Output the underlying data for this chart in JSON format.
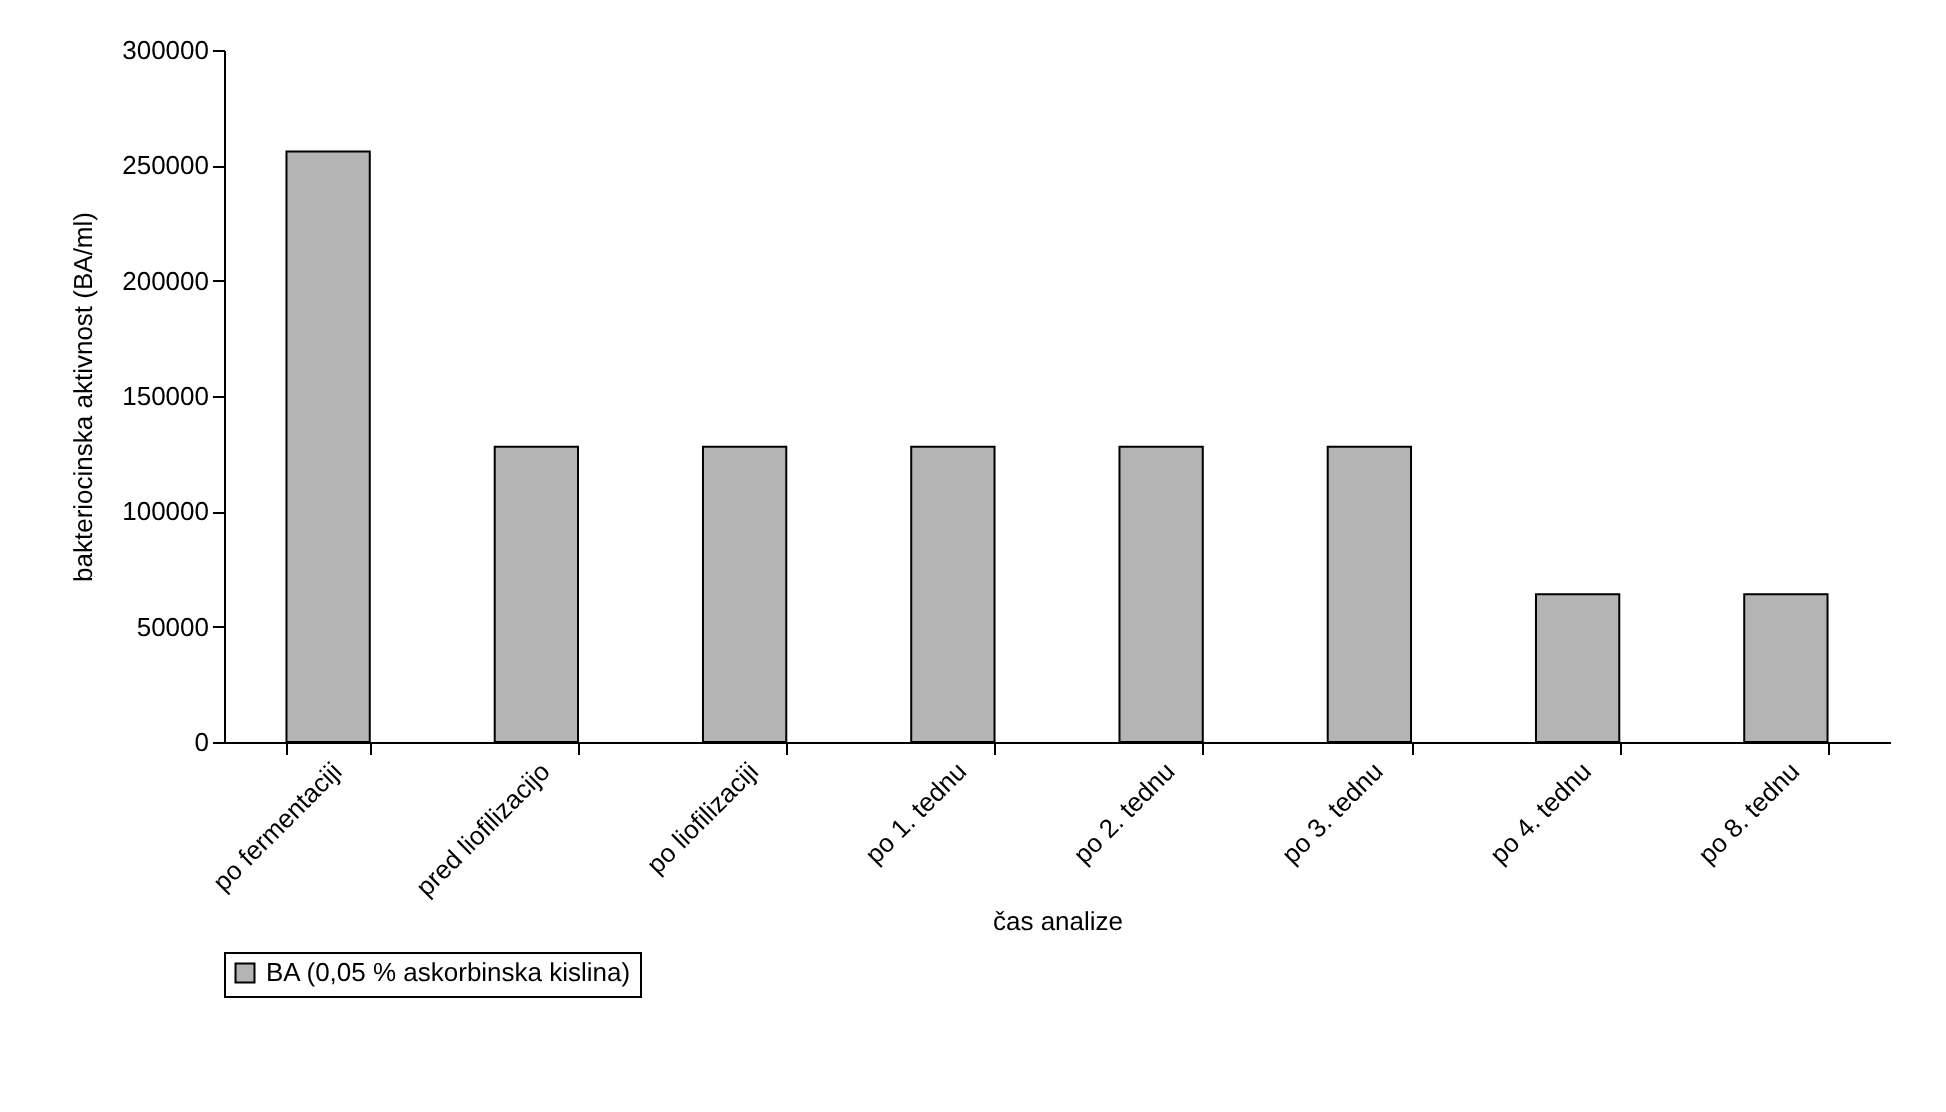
{
  "chart_data": {
    "type": "bar",
    "xlabel": "čas analize",
    "ylabel": "bakteriocinska aktivnost (BA/ml)",
    "categories": [
      "po fermentaciji",
      "pred liofilizacijo",
      "po liofilizaciji",
      "po 1. tednu",
      "po 2. tednu",
      "po 3. tednu",
      "po 4. tednu",
      "po 8. tednu"
    ],
    "series": [
      {
        "name": "BA (0,05 % askorbinska kislina)",
        "color": "#b4b4b4",
        "values": [
          256000,
          128000,
          128000,
          128000,
          128000,
          128000,
          64000,
          64000
        ]
      }
    ],
    "ylim": [
      0,
      300000
    ],
    "yticks": [
      0,
      50000,
      100000,
      150000,
      200000,
      250000,
      300000
    ],
    "grid": false,
    "legend": "bottom"
  }
}
